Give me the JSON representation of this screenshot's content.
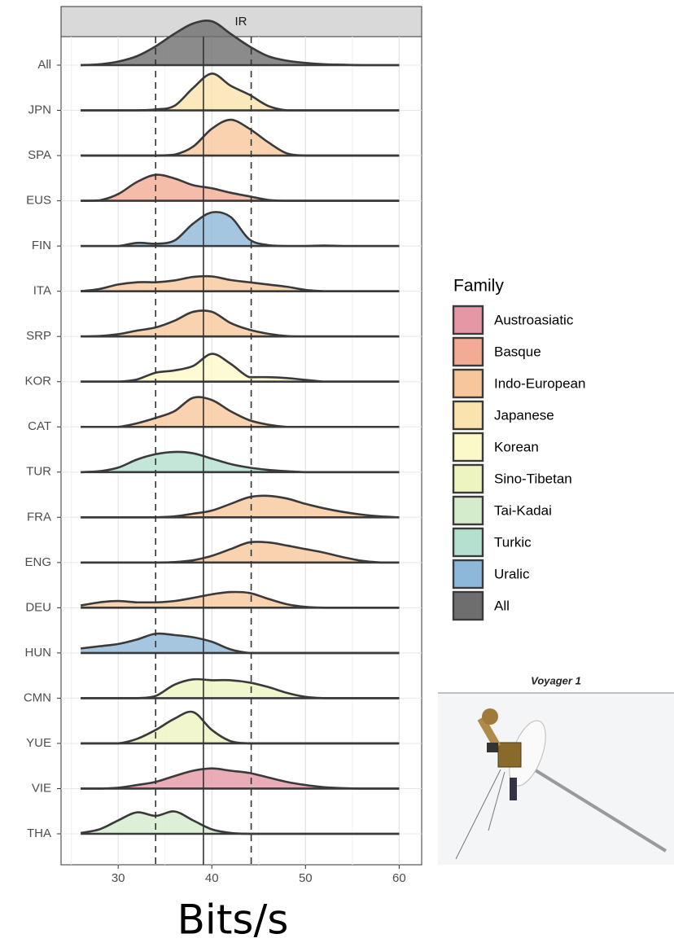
{
  "chart_data": {
    "type": "ridgeline",
    "strip": "IR",
    "xlabel": "Bits/s",
    "x": [
      26,
      28,
      30,
      32,
      34,
      36,
      38,
      40,
      42,
      44,
      46,
      48,
      50,
      52,
      54,
      56,
      58,
      60
    ],
    "series": [
      {
        "name": "All",
        "color": "#6e6e6e",
        "values": [
          0,
          0.02,
          0.08,
          0.2,
          0.42,
          0.7,
          0.93,
          0.98,
          0.7,
          0.42,
          0.2,
          0.1,
          0.05,
          0.02,
          0.01,
          0,
          0,
          0
        ]
      },
      {
        "name": "JPN",
        "color": "#fae3ad",
        "values": [
          0,
          0,
          0,
          0,
          0.02,
          0.1,
          0.5,
          0.82,
          0.55,
          0.35,
          0.1,
          0,
          0,
          0,
          0,
          0,
          0,
          0
        ]
      },
      {
        "name": "SPA",
        "color": "#f7c79b",
        "values": [
          0,
          0,
          0,
          0,
          0,
          0.02,
          0.2,
          0.6,
          0.8,
          0.6,
          0.3,
          0.05,
          0,
          0,
          0,
          0,
          0,
          0
        ]
      },
      {
        "name": "EUS",
        "color": "#f3ab95",
        "values": [
          0,
          0.01,
          0.15,
          0.42,
          0.58,
          0.5,
          0.35,
          0.28,
          0.18,
          0.1,
          0.02,
          0,
          0,
          0,
          0,
          0,
          0,
          0
        ]
      },
      {
        "name": "FIN",
        "color": "#8eb8da",
        "values": [
          0,
          0,
          0,
          0.07,
          0.05,
          0.12,
          0.5,
          0.75,
          0.65,
          0.15,
          0.02,
          0,
          0,
          0.01,
          0,
          0,
          0,
          0
        ]
      },
      {
        "name": "ITA",
        "color": "#f7c79b",
        "values": [
          0,
          0.05,
          0.15,
          0.2,
          0.2,
          0.24,
          0.32,
          0.33,
          0.25,
          0.2,
          0.15,
          0.1,
          0.03,
          0,
          0,
          0,
          0,
          0
        ]
      },
      {
        "name": "SRP",
        "color": "#f7c79b",
        "values": [
          0,
          0.01,
          0.05,
          0.13,
          0.2,
          0.35,
          0.55,
          0.55,
          0.3,
          0.15,
          0.06,
          0.01,
          0,
          0,
          0,
          0,
          0,
          0
        ]
      },
      {
        "name": "KOR",
        "color": "#fcf9c9",
        "values": [
          0,
          0,
          0,
          0.05,
          0.2,
          0.25,
          0.35,
          0.62,
          0.4,
          0.1,
          0.1,
          0.08,
          0.04,
          0,
          0,
          0,
          0,
          0
        ]
      },
      {
        "name": "CAT",
        "color": "#f7c79b",
        "values": [
          0,
          0,
          0,
          0.08,
          0.2,
          0.35,
          0.65,
          0.6,
          0.35,
          0.15,
          0.05,
          0,
          0,
          0,
          0,
          0,
          0,
          0
        ]
      },
      {
        "name": "TUR",
        "color": "#b5e0d0",
        "values": [
          0,
          0.02,
          0.1,
          0.28,
          0.4,
          0.45,
          0.42,
          0.3,
          0.18,
          0.1,
          0.05,
          0.02,
          0,
          0,
          0,
          0,
          0,
          0
        ]
      },
      {
        "name": "FRA",
        "color": "#f7c79b",
        "values": [
          0,
          0,
          0,
          0,
          0,
          0.02,
          0.08,
          0.15,
          0.3,
          0.45,
          0.48,
          0.42,
          0.3,
          0.2,
          0.12,
          0.06,
          0.02,
          0
        ]
      },
      {
        "name": "ENG",
        "color": "#f7c79b",
        "values": [
          0,
          0,
          0,
          0,
          0,
          0.01,
          0.05,
          0.15,
          0.3,
          0.45,
          0.45,
          0.38,
          0.3,
          0.22,
          0.12,
          0.04,
          0,
          0
        ]
      },
      {
        "name": "DEU",
        "color": "#f7c79b",
        "values": [
          0.05,
          0.12,
          0.15,
          0.12,
          0.12,
          0.15,
          0.22,
          0.3,
          0.35,
          0.33,
          0.2,
          0.08,
          0.02,
          0,
          0,
          0,
          0,
          0
        ]
      },
      {
        "name": "HUN",
        "color": "#8eb8da",
        "values": [
          0.1,
          0.15,
          0.2,
          0.3,
          0.43,
          0.4,
          0.35,
          0.25,
          0.08,
          0,
          0,
          0,
          0,
          0,
          0,
          0,
          0,
          0
        ]
      },
      {
        "name": "CMN",
        "color": "#eef4c0",
        "values": [
          0,
          0,
          0,
          0,
          0.05,
          0.3,
          0.42,
          0.4,
          0.4,
          0.35,
          0.25,
          0.12,
          0.03,
          0,
          0,
          0,
          0,
          0
        ]
      },
      {
        "name": "YUE",
        "color": "#eef4c0",
        "values": [
          0,
          0,
          0,
          0.1,
          0.3,
          0.55,
          0.7,
          0.3,
          0.05,
          0,
          0,
          0,
          0,
          0,
          0,
          0,
          0,
          0
        ]
      },
      {
        "name": "VIE",
        "color": "#e597a5",
        "values": [
          0,
          0,
          0.02,
          0.08,
          0.15,
          0.28,
          0.4,
          0.45,
          0.4,
          0.35,
          0.25,
          0.15,
          0.08,
          0.03,
          0.01,
          0,
          0,
          0
        ]
      },
      {
        "name": "THA",
        "color": "#d4ebcc",
        "values": [
          0.02,
          0.1,
          0.3,
          0.48,
          0.4,
          0.5,
          0.3,
          0.1,
          0.02,
          0,
          0,
          0,
          0,
          0,
          0,
          0,
          0,
          0
        ]
      }
    ],
    "xlim": [
      23.9,
      62.4
    ],
    "xticks": [
      30,
      40,
      50,
      60
    ],
    "xminorticks": [
      25,
      35,
      45,
      55
    ],
    "grid": true,
    "vlines": [
      {
        "value": 34,
        "style": "dashed"
      },
      {
        "value": 39.1,
        "style": "solid"
      },
      {
        "value": 44.2,
        "style": "dashed"
      }
    ],
    "legend": {
      "title": "Family",
      "entries": [
        {
          "name": "Austroasiatic",
          "color": "#e597a5"
        },
        {
          "name": "Basque",
          "color": "#f3ab95"
        },
        {
          "name": "Indo-European",
          "color": "#f7c79b"
        },
        {
          "name": "Japanese",
          "color": "#fae3ad"
        },
        {
          "name": "Korean",
          "color": "#fcf9c9"
        },
        {
          "name": "Sino-Tibetan",
          "color": "#eef4c0"
        },
        {
          "name": "Tai-Kadai",
          "color": "#d4ebcc"
        },
        {
          "name": "Turkic",
          "color": "#b5e0d0"
        },
        {
          "name": "Uralic",
          "color": "#8eb8da"
        },
        {
          "name": "All",
          "color": "#6e6e6e"
        }
      ]
    }
  },
  "image": {
    "caption": "Voyager 1"
  }
}
